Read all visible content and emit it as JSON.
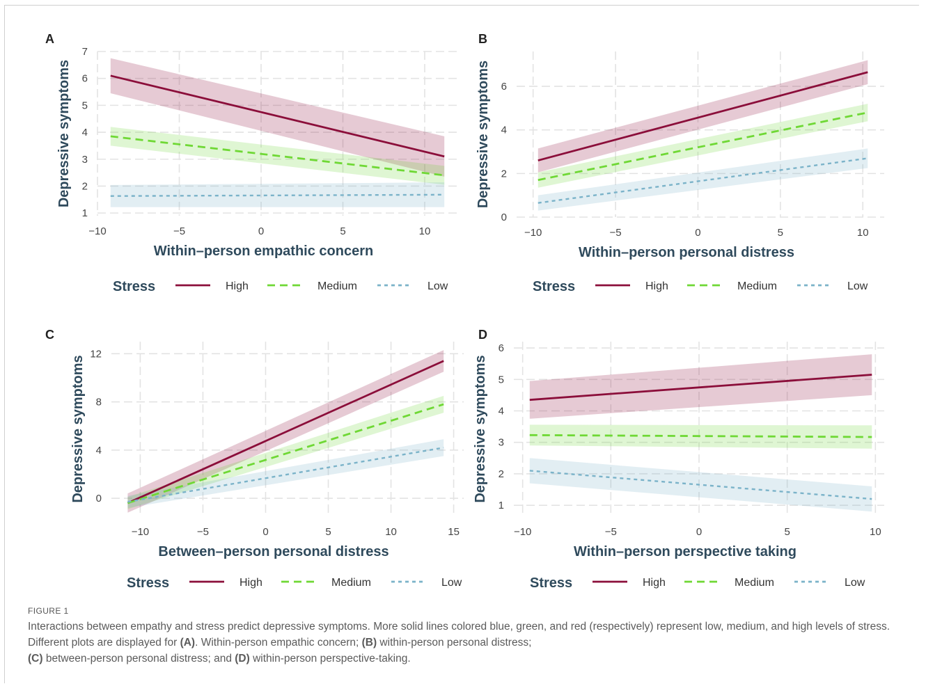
{
  "colors": {
    "high": "#8b0e3a",
    "medium": "#6fd835",
    "low": "#7bb3c9",
    "axis_title": "#2f4a5c",
    "tick": "#444444",
    "grid": "#e3e3e3"
  },
  "legend": {
    "title": "Stress",
    "items": [
      "High",
      "Medium",
      "Low"
    ]
  },
  "chart_data": [
    {
      "panel": "A",
      "type": "line",
      "xlabel": "Within–person empathic concern",
      "ylabel": "Depressive symptoms",
      "xlim": [
        -10,
        12
      ],
      "ylim": [
        0.9,
        7
      ],
      "xticks": [
        -10,
        -5,
        0,
        5,
        10
      ],
      "xtick_labels": [
        "−10",
        "−5",
        "0",
        "5",
        "10"
      ],
      "yticks": [
        1,
        2,
        3,
        4,
        5,
        6,
        7
      ],
      "ytick_labels": [
        "1",
        "2",
        "3",
        "4",
        "5",
        "6",
        "7"
      ],
      "grid": true,
      "legend_position": "bottom",
      "series": [
        {
          "name": "High",
          "x": [
            -9.2,
            11.2
          ],
          "y": [
            6.1,
            3.1
          ],
          "ci_lower": [
            5.45,
            2.35
          ],
          "ci_upper": [
            6.75,
            3.85
          ]
        },
        {
          "name": "Medium",
          "x": [
            -9.2,
            11.2
          ],
          "y": [
            3.85,
            2.4
          ],
          "ci_lower": [
            3.5,
            2.05
          ],
          "ci_upper": [
            4.2,
            2.75
          ]
        },
        {
          "name": "Low",
          "x": [
            -9.2,
            11.2
          ],
          "y": [
            1.63,
            1.68
          ],
          "ci_lower": [
            1.22,
            1.22
          ],
          "ci_upper": [
            2.04,
            2.14
          ]
        }
      ]
    },
    {
      "panel": "B",
      "type": "line",
      "xlabel": "Within–person personal distress",
      "ylabel": "Depressive symptoms",
      "xlim": [
        -11,
        11.3
      ],
      "ylim": [
        0,
        7.6
      ],
      "xticks": [
        -10,
        -5,
        0,
        5,
        10
      ],
      "xtick_labels": [
        "−10",
        "−5",
        "0",
        "5",
        "10"
      ],
      "yticks": [
        0,
        2,
        4,
        6
      ],
      "ytick_labels": [
        "0",
        "2",
        "4",
        "6"
      ],
      "grid": true,
      "legend_position": "bottom",
      "series": [
        {
          "name": "High",
          "x": [
            -9.7,
            10.3
          ],
          "y": [
            2.6,
            6.65
          ],
          "ci_lower": [
            2.05,
            6.1
          ],
          "ci_upper": [
            3.15,
            7.2
          ]
        },
        {
          "name": "Medium",
          "x": [
            -9.7,
            10.3
          ],
          "y": [
            1.7,
            4.8
          ],
          "ci_lower": [
            1.35,
            4.4
          ],
          "ci_upper": [
            2.05,
            5.2
          ]
        },
        {
          "name": "Low",
          "x": [
            -9.7,
            10.3
          ],
          "y": [
            0.65,
            2.7
          ],
          "ci_lower": [
            0.3,
            2.25
          ],
          "ci_upper": [
            1.0,
            3.15
          ]
        }
      ]
    },
    {
      "panel": "C",
      "type": "line",
      "xlabel": "Between–person personal distress",
      "ylabel": "Depressive symptoms",
      "xlim": [
        -12.3,
        15.8
      ],
      "ylim": [
        -1.5,
        13
      ],
      "xticks": [
        -10,
        -5,
        0,
        5,
        10,
        15
      ],
      "xtick_labels": [
        "−10",
        "−5",
        "0",
        "5",
        "10",
        "15"
      ],
      "yticks": [
        0,
        4,
        8,
        12
      ],
      "ytick_labels": [
        "0",
        "4",
        "8",
        "12"
      ],
      "grid": true,
      "legend_position": "bottom",
      "series": [
        {
          "name": "High",
          "x": [
            -11,
            14.2
          ],
          "y": [
            -0.4,
            11.4
          ],
          "ci_lower": [
            -1.2,
            10.5
          ],
          "ci_upper": [
            0.4,
            12.3
          ]
        },
        {
          "name": "Medium",
          "x": [
            -11,
            14.2
          ],
          "y": [
            -0.4,
            7.8
          ],
          "ci_lower": [
            -0.9,
            7.1
          ],
          "ci_upper": [
            0.1,
            8.5
          ]
        },
        {
          "name": "Low",
          "x": [
            -11,
            14.2
          ],
          "y": [
            -0.3,
            4.2
          ],
          "ci_lower": [
            -0.8,
            3.5
          ],
          "ci_upper": [
            0.2,
            4.9
          ]
        }
      ]
    },
    {
      "panel": "D",
      "type": "line",
      "xlabel": "Within–person perspective taking",
      "ylabel": "Depressive symptoms",
      "xlim": [
        -10.5,
        10.5
      ],
      "ylim": [
        0.65,
        6.2
      ],
      "xticks": [
        -10,
        -5,
        0,
        5,
        10
      ],
      "xtick_labels": [
        "−10",
        "−5",
        "0",
        "5",
        "10"
      ],
      "yticks": [
        1,
        2,
        3,
        4,
        5,
        6
      ],
      "ytick_labels": [
        "1",
        "2",
        "3",
        "4",
        "5",
        "6"
      ],
      "grid": true,
      "legend_position": "bottom",
      "series": [
        {
          "name": "High",
          "x": [
            -9.6,
            9.8
          ],
          "y": [
            4.35,
            5.15
          ],
          "ci_lower": [
            3.75,
            4.5
          ],
          "ci_upper": [
            4.95,
            5.8
          ]
        },
        {
          "name": "Medium",
          "x": [
            -9.6,
            9.8
          ],
          "y": [
            3.23,
            3.17
          ],
          "ci_lower": [
            2.9,
            2.8
          ],
          "ci_upper": [
            3.56,
            3.54
          ]
        },
        {
          "name": "Low",
          "x": [
            -9.6,
            9.8
          ],
          "y": [
            2.1,
            1.2
          ],
          "ci_lower": [
            1.7,
            0.8
          ],
          "ci_upper": [
            2.5,
            1.6
          ]
        }
      ]
    }
  ],
  "caption": {
    "label": "FIGURE 1",
    "text_1": "Interactions between empathy and stress predict depressive symptoms. More solid lines colored blue, green, and red (respectively) represent low, medium, and high levels of stress. Different plots are displayed for ",
    "ref_a": "(A)",
    "text_2": ". Within-person empathic concern; ",
    "ref_b": "(B)",
    "text_3": " within-person personal distress; ",
    "ref_c": "(C)",
    "text_4": " between-person personal distress; and ",
    "ref_d": "(D)",
    "text_5": " within-person perspective-taking."
  }
}
